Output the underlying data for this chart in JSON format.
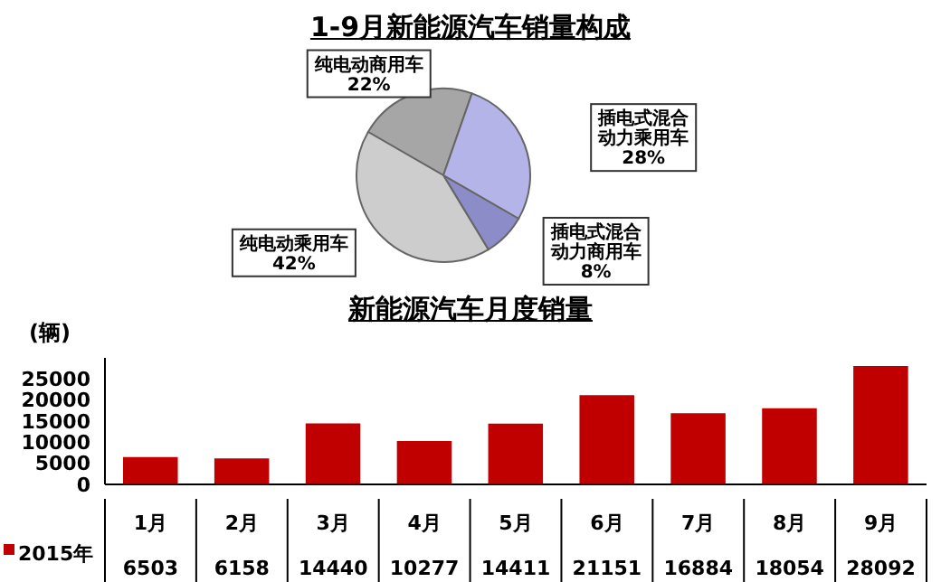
{
  "chart_data": [
    {
      "type": "pie",
      "title": "1-9月新能源汽车销量构成",
      "categories": [
        "纯电动商用车",
        "插电式混合动力乘用车",
        "插电式混合动力商用车",
        "纯电动乘用车"
      ],
      "values": [
        22,
        28,
        8,
        42
      ],
      "colors": [
        "#a6a6a6",
        "#b4b4e8",
        "#8c8cc8",
        "#cdcdcd"
      ],
      "value_labels": [
        "22%",
        "28%",
        "8%",
        "42%"
      ]
    },
    {
      "type": "bar",
      "title": "新能源汽车月度销量",
      "ylabel": "(辆)",
      "categories": [
        "1月",
        "2月",
        "3月",
        "4月",
        "5月",
        "6月",
        "7月",
        "8月",
        "9月"
      ],
      "series": [
        {
          "name": "2015年",
          "color": "#c00000",
          "values": [
            6503,
            6158,
            14440,
            10277,
            14411,
            21151,
            16884,
            18054,
            28092
          ]
        }
      ],
      "ylim": [
        0,
        30000
      ],
      "yticks": [
        0,
        5000,
        10000,
        15000,
        20000,
        25000
      ],
      "grid": false,
      "data_labels": true,
      "legend": "bottom left"
    }
  ]
}
